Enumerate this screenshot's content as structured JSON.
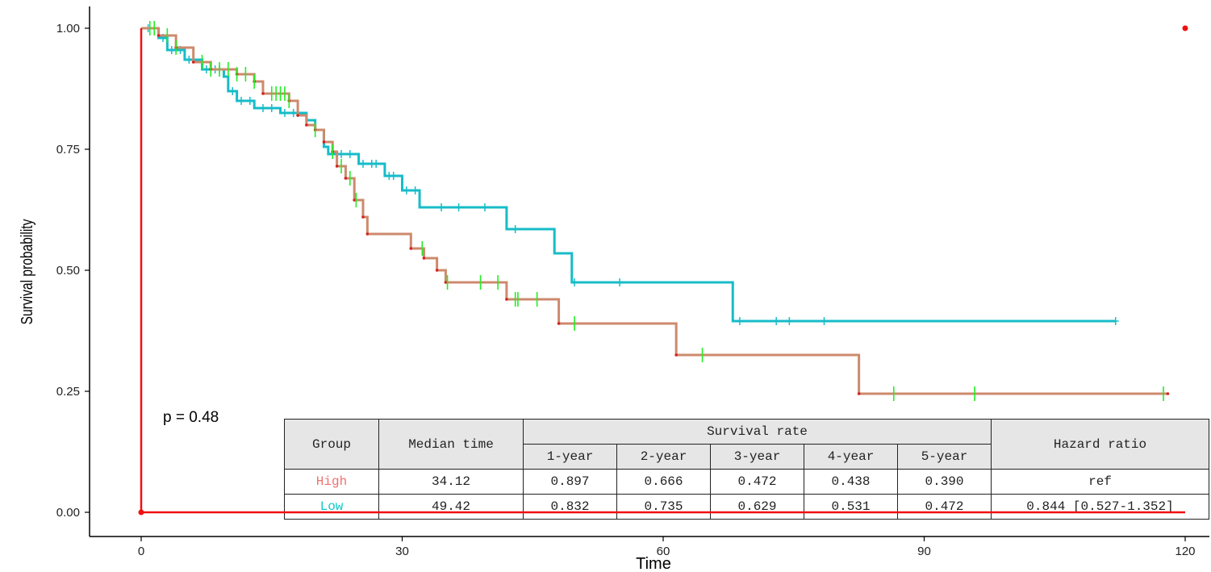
{
  "chart_data": {
    "type": "line",
    "subtype": "kaplan-meier",
    "xlabel": "Time",
    "ylabel": "Survival probability",
    "xlim": [
      -2,
      122
    ],
    "ylim": [
      0,
      1.05
    ],
    "x_ticks": [
      0,
      30,
      60,
      90,
      120
    ],
    "y_ticks": [
      0.0,
      0.25,
      0.5,
      0.75,
      1.0
    ],
    "y_tick_labels": [
      "0.00",
      "0.25",
      "0.50",
      "0.75",
      "1.00"
    ],
    "annotation": "p = 0.48",
    "colors": {
      "High": "#cd8a6c",
      "High_points": "#d62020",
      "Low": "#17bcc8",
      "High_censor": "#22ee22",
      "Low_censor": "#17bcc8",
      "overlay": "#ee1111"
    },
    "series": [
      {
        "name": "High",
        "steps": [
          [
            0,
            1.0
          ],
          [
            2,
            0.985
          ],
          [
            4,
            0.96
          ],
          [
            6,
            0.93
          ],
          [
            8,
            0.915
          ],
          [
            11,
            0.905
          ],
          [
            13,
            0.89
          ],
          [
            14,
            0.865
          ],
          [
            17,
            0.85
          ],
          [
            18,
            0.82
          ],
          [
            19,
            0.8
          ],
          [
            20,
            0.79
          ],
          [
            21,
            0.765
          ],
          [
            22,
            0.745
          ],
          [
            22.5,
            0.715
          ],
          [
            23.5,
            0.69
          ],
          [
            24.5,
            0.645
          ],
          [
            25.5,
            0.61
          ],
          [
            26,
            0.575
          ],
          [
            31,
            0.545
          ],
          [
            32.5,
            0.525
          ],
          [
            34,
            0.5
          ],
          [
            35,
            0.475
          ],
          [
            42,
            0.44
          ],
          [
            48,
            0.39
          ],
          [
            61.5,
            0.325
          ],
          [
            82.5,
            0.245
          ],
          [
            118,
            0.245
          ]
        ],
        "censor_times": [
          1,
          1.5,
          3,
          4,
          7,
          8,
          9,
          10,
          11,
          12,
          13,
          15,
          15.5,
          16,
          16.5,
          17,
          20,
          22,
          23,
          24,
          24.7,
          32.3,
          35.2,
          39,
          41,
          43,
          43.3,
          45.5,
          49.8,
          64.5,
          86.5,
          95.8,
          117.5
        ]
      },
      {
        "name": "Low",
        "steps": [
          [
            0,
            1.0
          ],
          [
            2,
            0.98
          ],
          [
            3,
            0.955
          ],
          [
            5,
            0.935
          ],
          [
            7,
            0.915
          ],
          [
            9.5,
            0.9
          ],
          [
            10,
            0.87
          ],
          [
            11,
            0.85
          ],
          [
            13,
            0.835
          ],
          [
            16,
            0.825
          ],
          [
            19,
            0.81
          ],
          [
            20,
            0.79
          ],
          [
            21,
            0.755
          ],
          [
            21.5,
            0.74
          ],
          [
            25,
            0.72
          ],
          [
            28,
            0.695
          ],
          [
            30,
            0.665
          ],
          [
            32,
            0.63
          ],
          [
            42,
            0.585
          ],
          [
            47.5,
            0.535
          ],
          [
            49.5,
            0.475
          ],
          [
            68,
            0.395
          ],
          [
            112,
            0.395
          ]
        ],
        "censor_times": [
          0.8,
          2.5,
          3.5,
          4.5,
          5.5,
          7.5,
          8.5,
          9,
          10.5,
          11.5,
          12.5,
          14,
          15,
          16.5,
          17.5,
          18,
          23,
          24,
          25.5,
          26.5,
          27,
          28.5,
          29,
          30.5,
          31.5,
          34.5,
          36.5,
          39.5,
          43,
          49.8,
          55,
          68.8,
          73,
          74.5,
          78.5,
          112
        ]
      }
    ],
    "overlay": {
      "vertical_line": [
        [
          0,
          0
        ],
        [
          0,
          1.0
        ]
      ],
      "horizontal_line": [
        [
          0,
          0
        ],
        [
          120,
          0
        ]
      ],
      "points": [
        [
          0,
          0
        ],
        [
          120,
          1.0
        ]
      ]
    }
  },
  "table": {
    "header_row1": {
      "group": "Group",
      "median": "Median time",
      "survival_rate": "Survival rate",
      "hazard": "Hazard ratio"
    },
    "years": [
      "1-year",
      "2-year",
      "3-year",
      "4-year",
      "5-year"
    ],
    "rows": [
      {
        "group": "High",
        "median": "34.12",
        "rates": [
          "0.897",
          "0.666",
          "0.472",
          "0.438",
          "0.390"
        ],
        "hazard": "ref"
      },
      {
        "group": "Low",
        "median": "49.42",
        "rates": [
          "0.832",
          "0.735",
          "0.629",
          "0.531",
          "0.472"
        ],
        "hazard": "0.844 [0.527-1.352]"
      }
    ]
  }
}
